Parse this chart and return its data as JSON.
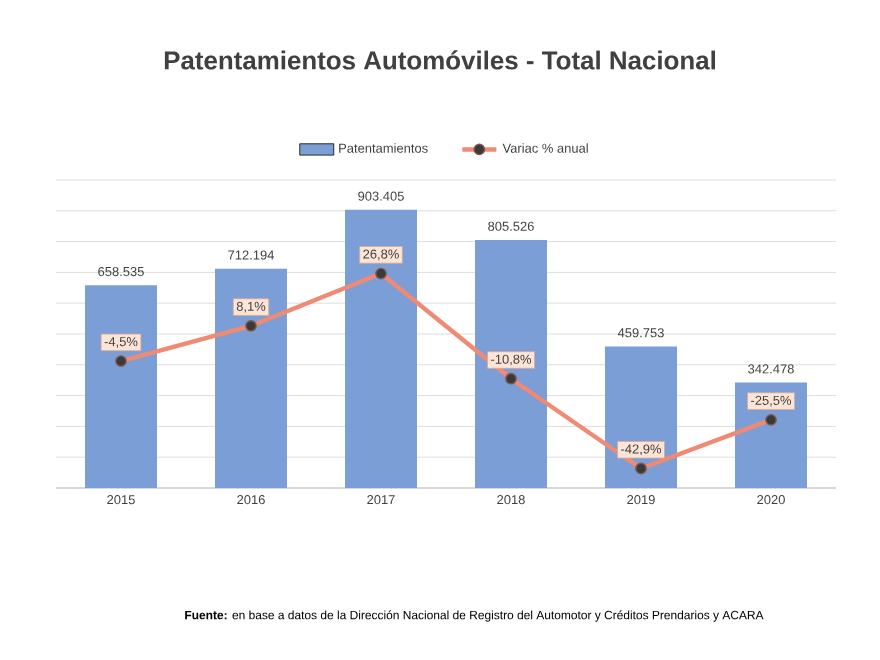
{
  "chart_data": {
    "type": "bar",
    "title": "Patentamientos Automóviles - Total Nacional",
    "categories": [
      "2015",
      "2016",
      "2017",
      "2018",
      "2019",
      "2020"
    ],
    "series": [
      {
        "name": "Patentamientos",
        "color": "#7b9ed6",
        "values": [
          658535,
          712194,
          903405,
          805526,
          459753,
          342478
        ],
        "value_labels": [
          "658.535",
          "712.194",
          "903.405",
          "805.526",
          "459.753",
          "342.478"
        ]
      },
      {
        "name": "Variac % anual",
        "type": "line",
        "axis": "y2",
        "color": "#ef8a75",
        "values": [
          -4.5,
          8.1,
          26.8,
          -10.8,
          -42.9,
          -25.5
        ],
        "value_labels": [
          "-4,5%",
          "8,1%",
          "26,8%",
          "-10,8%",
          "-42,9%",
          "-25,5%"
        ]
      }
    ],
    "ylim": [
      0,
      1000000
    ],
    "yticks": [
      {
        "value": 0,
        "label": null
      },
      {
        "value": 100000,
        "label": null
      },
      {
        "value": 200000,
        "label": null
      },
      {
        "value": 300000,
        "label": null
      },
      {
        "value": 400000,
        "label": null
      },
      {
        "value": 500000,
        "label": null
      },
      {
        "value": 600000,
        "label": null
      },
      {
        "value": 700000,
        "label": null
      },
      {
        "value": 800000,
        "label": null
      },
      {
        "value": 900000,
        "label": null
      },
      {
        "value": 1000000,
        "label": null
      }
    ],
    "grid": "y",
    "legend": "top",
    "tick_labels": "x",
    "marker": "circle",
    "annotations": [
      "**Fuente:** en base a datos de la Dirección Nacional de Registro del Automotor y Créditos Prendarios y ACARA"
    ]
  }
}
